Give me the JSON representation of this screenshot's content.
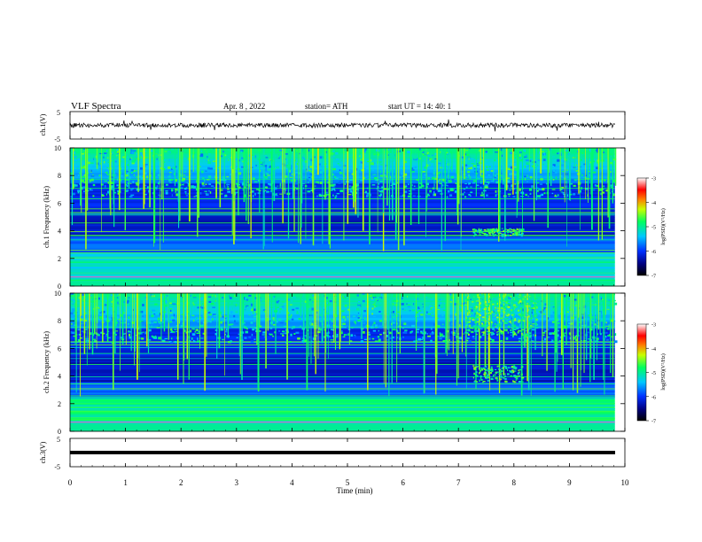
{
  "header": {
    "title": "VLF  Spectra",
    "date": "Apr. 8  , 2022",
    "station": "station= ATH",
    "start": "start  UT  =   14: 40: 1"
  },
  "chart_data": [
    {
      "panel": "ch1-waveform",
      "type": "line",
      "ylabel": "ch.1(V)",
      "ylim": [
        -5,
        5
      ],
      "yticks": [
        "5",
        "-5"
      ]
    },
    {
      "panel": "ch1-spectrogram",
      "type": "heatmap",
      "ylabel": "ch.1 Frequency  (kHz)",
      "ylim": [
        0,
        10
      ],
      "yticks": [
        "0",
        "2",
        "4",
        "6",
        "8",
        "10"
      ],
      "colorbar": {
        "label": "log(PSD)(V²/Hz)",
        "range": [
          -7,
          -3
        ],
        "ticks": [
          "-3",
          "-4",
          "-5",
          "-6",
          "-7"
        ]
      }
    },
    {
      "panel": "ch2-spectrogram",
      "type": "heatmap",
      "ylabel": "ch.2 Frequency  (kHz)",
      "ylim": [
        0,
        10
      ],
      "yticks": [
        "0",
        "2",
        "4",
        "6",
        "8",
        "10"
      ],
      "colorbar": {
        "label": "log(PSD)(V²/Hz)",
        "range": [
          -7,
          -3
        ],
        "ticks": [
          "-3",
          "-4",
          "-5",
          "-6",
          "-7"
        ]
      }
    },
    {
      "panel": "ch3-waveform",
      "type": "line",
      "ylabel": "ch.3(V)",
      "ylim": [
        -5,
        5
      ],
      "yticks": [
        "5",
        "-5"
      ]
    }
  ],
  "x_axis": {
    "label": "Time  (min)",
    "ticks": [
      "0",
      "1",
      "2",
      "3",
      "4",
      "5",
      "6",
      "7",
      "8",
      "9",
      "10"
    ],
    "xlim": [
      0,
      10
    ],
    "data_end": 9.82
  },
  "features": {
    "hiss_bursts": [
      {
        "panel": "ch1-spectrogram",
        "t": [
          7.25,
          8.15
        ],
        "f": [
          3.7,
          4.2
        ]
      },
      {
        "panel": "ch2-spectrogram",
        "t": [
          7.25,
          8.15
        ],
        "f": [
          3.6,
          4.8
        ]
      },
      {
        "panel": "ch2-spectrogram",
        "t": [
          7.1,
          8.4
        ],
        "f": [
          7.0,
          10.0
        ]
      }
    ]
  }
}
